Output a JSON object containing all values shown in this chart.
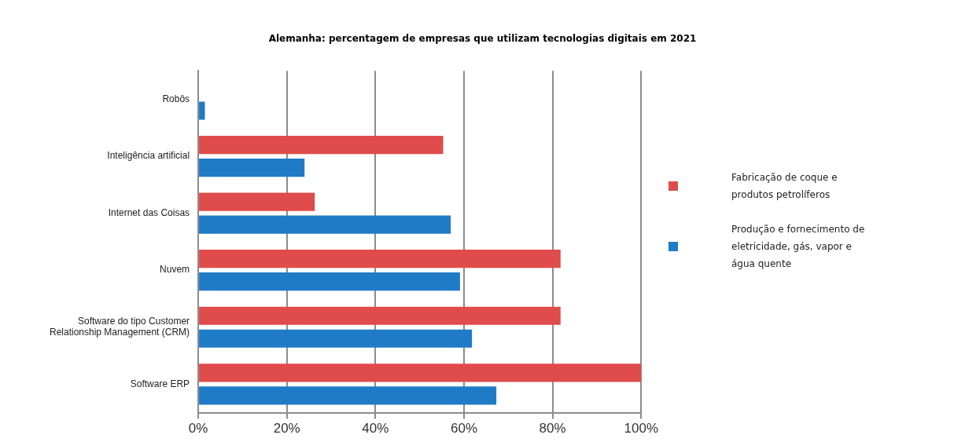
{
  "chart_data": {
    "type": "bar",
    "orientation": "horizontal",
    "title": "Alemanha: percentagem de empresas que utilizam tecnologias digitais em 2021",
    "categories": [
      "Robôs",
      "Inteligência artificial",
      "Internet das Coisas",
      "Nuvem",
      "Software do tipo Customer Relationship Management (CRM)",
      "Software ERP"
    ],
    "series": [
      {
        "name": "Fabricação de coque e produtos petrolíferos",
        "color": "#e04b4b",
        "values": [
          null,
          55.3,
          26.3,
          81.8,
          81.8,
          100
        ]
      },
      {
        "name": "Produção e fornecimento de eletricidade, gás, vapor e água quente",
        "color": "#1f7bc6",
        "values": [
          1.5,
          24.0,
          57.0,
          59.1,
          61.8,
          67.3
        ]
      }
    ],
    "xlim": [
      0,
      100
    ],
    "xticks": [
      {
        "value": 0,
        "label": "0%"
      },
      {
        "value": 20,
        "label": "20%"
      },
      {
        "value": 40,
        "label": "40%"
      },
      {
        "value": 60,
        "label": "60%"
      },
      {
        "value": 80,
        "label": "80%"
      },
      {
        "value": 100,
        "label": "100%"
      }
    ],
    "grid": "x",
    "legend": "right"
  }
}
